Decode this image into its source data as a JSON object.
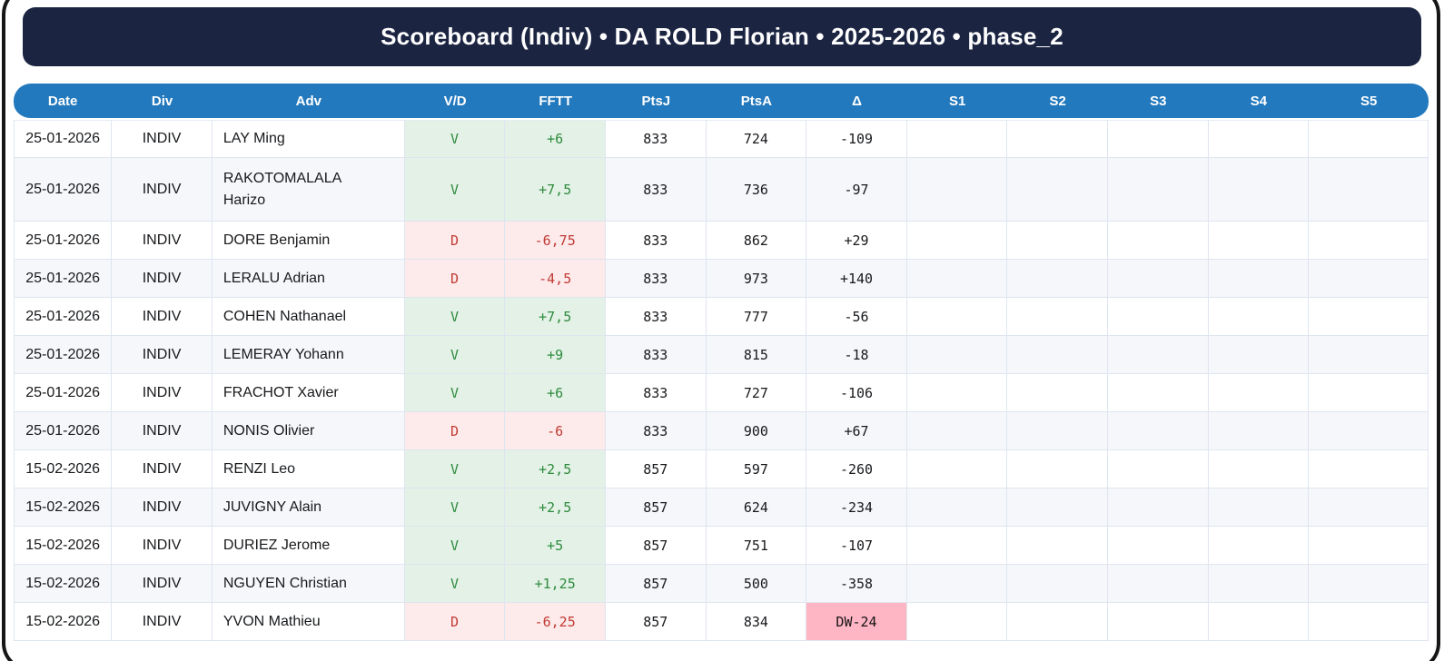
{
  "title": "Scoreboard (Indiv) • DA ROLD Florian • 2025-2026 • phase_2",
  "colors": {
    "titlebar_bg": "#1b2441",
    "header_bg": "#2379bd",
    "win_bg": "#e3f1e6",
    "win_text": "#2e8b3e",
    "loss_bg": "#fdeaea",
    "loss_text": "#c23a35",
    "delta_warn_bg": "#ffb6c4",
    "row_alt_bg": "#f5f7fb"
  },
  "table": {
    "columns": [
      "Date",
      "Div",
      "Adv",
      "V/D",
      "FFTT",
      "PtsJ",
      "PtsA",
      "Δ",
      "S1",
      "S2",
      "S3",
      "S4",
      "S5"
    ],
    "rows": [
      {
        "date": "25-01-2026",
        "div": "INDIV",
        "adv": "LAY Ming",
        "vd": "V",
        "fftt": "+6",
        "ptsj": "833",
        "ptsa": "724",
        "delta": "-109",
        "s1": "",
        "s2": "",
        "s3": "",
        "s4": "",
        "s5": "",
        "delta_highlight": false
      },
      {
        "date": "25-01-2026",
        "div": "INDIV",
        "adv": "RAKOTOMALALA Harizo",
        "vd": "V",
        "fftt": "+7,5",
        "ptsj": "833",
        "ptsa": "736",
        "delta": "-97",
        "s1": "",
        "s2": "",
        "s3": "",
        "s4": "",
        "s5": "",
        "delta_highlight": false
      },
      {
        "date": "25-01-2026",
        "div": "INDIV",
        "adv": "DORE Benjamin",
        "vd": "D",
        "fftt": "-6,75",
        "ptsj": "833",
        "ptsa": "862",
        "delta": "+29",
        "s1": "",
        "s2": "",
        "s3": "",
        "s4": "",
        "s5": "",
        "delta_highlight": false
      },
      {
        "date": "25-01-2026",
        "div": "INDIV",
        "adv": "LERALU Adrian",
        "vd": "D",
        "fftt": "-4,5",
        "ptsj": "833",
        "ptsa": "973",
        "delta": "+140",
        "s1": "",
        "s2": "",
        "s3": "",
        "s4": "",
        "s5": "",
        "delta_highlight": false
      },
      {
        "date": "25-01-2026",
        "div": "INDIV",
        "adv": "COHEN Nathanael",
        "vd": "V",
        "fftt": "+7,5",
        "ptsj": "833",
        "ptsa": "777",
        "delta": "-56",
        "s1": "",
        "s2": "",
        "s3": "",
        "s4": "",
        "s5": "",
        "delta_highlight": false
      },
      {
        "date": "25-01-2026",
        "div": "INDIV",
        "adv": "LEMERAY Yohann",
        "vd": "V",
        "fftt": "+9",
        "ptsj": "833",
        "ptsa": "815",
        "delta": "-18",
        "s1": "",
        "s2": "",
        "s3": "",
        "s4": "",
        "s5": "",
        "delta_highlight": false
      },
      {
        "date": "25-01-2026",
        "div": "INDIV",
        "adv": "FRACHOT Xavier",
        "vd": "V",
        "fftt": "+6",
        "ptsj": "833",
        "ptsa": "727",
        "delta": "-106",
        "s1": "",
        "s2": "",
        "s3": "",
        "s4": "",
        "s5": "",
        "delta_highlight": false
      },
      {
        "date": "25-01-2026",
        "div": "INDIV",
        "adv": "NONIS Olivier",
        "vd": "D",
        "fftt": "-6",
        "ptsj": "833",
        "ptsa": "900",
        "delta": "+67",
        "s1": "",
        "s2": "",
        "s3": "",
        "s4": "",
        "s5": "",
        "delta_highlight": false
      },
      {
        "date": "15-02-2026",
        "div": "INDIV",
        "adv": "RENZI Leo",
        "vd": "V",
        "fftt": "+2,5",
        "ptsj": "857",
        "ptsa": "597",
        "delta": "-260",
        "s1": "",
        "s2": "",
        "s3": "",
        "s4": "",
        "s5": "",
        "delta_highlight": false
      },
      {
        "date": "15-02-2026",
        "div": "INDIV",
        "adv": "JUVIGNY Alain",
        "vd": "V",
        "fftt": "+2,5",
        "ptsj": "857",
        "ptsa": "624",
        "delta": "-234",
        "s1": "",
        "s2": "",
        "s3": "",
        "s4": "",
        "s5": "",
        "delta_highlight": false
      },
      {
        "date": "15-02-2026",
        "div": "INDIV",
        "adv": "DURIEZ Jerome",
        "vd": "V",
        "fftt": "+5",
        "ptsj": "857",
        "ptsa": "751",
        "delta": "-107",
        "s1": "",
        "s2": "",
        "s3": "",
        "s4": "",
        "s5": "",
        "delta_highlight": false
      },
      {
        "date": "15-02-2026",
        "div": "INDIV",
        "adv": "NGUYEN Christian",
        "vd": "V",
        "fftt": "+1,25",
        "ptsj": "857",
        "ptsa": "500",
        "delta": "-358",
        "s1": "",
        "s2": "",
        "s3": "",
        "s4": "",
        "s5": "",
        "delta_highlight": false
      },
      {
        "date": "15-02-2026",
        "div": "INDIV",
        "adv": "YVON Mathieu",
        "vd": "D",
        "fftt": "-6,25",
        "ptsj": "857",
        "ptsa": "834",
        "delta": "DW-24",
        "s1": "",
        "s2": "",
        "s3": "",
        "s4": "",
        "s5": "",
        "delta_highlight": true
      }
    ]
  }
}
